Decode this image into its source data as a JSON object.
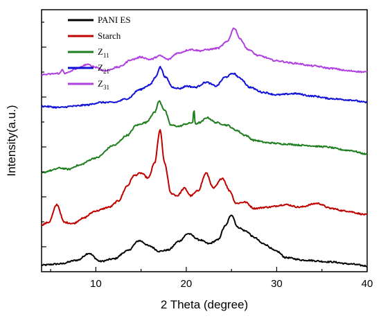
{
  "chart_data": {
    "type": "line",
    "title": "",
    "xlabel": "2 Theta (degree)",
    "ylabel": "Intensity(a.u.)",
    "xlim": [
      4,
      40
    ],
    "ylim": [
      0,
      1
    ],
    "x_ticks": [
      10,
      20,
      30,
      40
    ],
    "y_tick_labels_shown": false,
    "grid": false,
    "legend_position": "top-left",
    "series": [
      {
        "name": "PANI ES",
        "legend_base": "PANI ES",
        "legend_sub": "",
        "color": "#000000",
        "points": [
          [
            4,
            0.015
          ],
          [
            6,
            0.02
          ],
          [
            8,
            0.035
          ],
          [
            9.2,
            0.062
          ],
          [
            10.5,
            0.03
          ],
          [
            12,
            0.04
          ],
          [
            13.5,
            0.072
          ],
          [
            14.8,
            0.112
          ],
          [
            16,
            0.09
          ],
          [
            17,
            0.07
          ],
          [
            18,
            0.075
          ],
          [
            19.2,
            0.11
          ],
          [
            20.2,
            0.14
          ],
          [
            21.5,
            0.115
          ],
          [
            22.5,
            0.1
          ],
          [
            23.5,
            0.115
          ],
          [
            24.3,
            0.17
          ],
          [
            25,
            0.215
          ],
          [
            25.7,
            0.165
          ],
          [
            26.6,
            0.15
          ],
          [
            27.5,
            0.125
          ],
          [
            28.5,
            0.1
          ],
          [
            30,
            0.07
          ],
          [
            31,
            0.045
          ],
          [
            33,
            0.035
          ],
          [
            36,
            0.028
          ],
          [
            38,
            0.02
          ],
          [
            40,
            0.012
          ]
        ]
      },
      {
        "name": "Starch",
        "legend_base": "Starch",
        "legend_sub": "",
        "color": "#c00000",
        "points": [
          [
            4,
            0.175
          ],
          [
            4.8,
            0.185
          ],
          [
            5.7,
            0.255
          ],
          [
            6.5,
            0.185
          ],
          [
            7.5,
            0.18
          ],
          [
            8.5,
            0.2
          ],
          [
            10,
            0.23
          ],
          [
            11.5,
            0.245
          ],
          [
            12.5,
            0.27
          ],
          [
            13.5,
            0.33
          ],
          [
            14.2,
            0.37
          ],
          [
            15,
            0.38
          ],
          [
            15.8,
            0.36
          ],
          [
            16.5,
            0.42
          ],
          [
            17.1,
            0.55
          ],
          [
            17.6,
            0.42
          ],
          [
            18.3,
            0.3
          ],
          [
            19,
            0.29
          ],
          [
            19.8,
            0.32
          ],
          [
            20.5,
            0.29
          ],
          [
            21.3,
            0.31
          ],
          [
            22.2,
            0.38
          ],
          [
            23,
            0.32
          ],
          [
            24,
            0.36
          ],
          [
            24.8,
            0.31
          ],
          [
            25.5,
            0.26
          ],
          [
            26.5,
            0.265
          ],
          [
            27.5,
            0.24
          ],
          [
            29,
            0.245
          ],
          [
            31,
            0.255
          ],
          [
            32.5,
            0.245
          ],
          [
            34.5,
            0.26
          ],
          [
            36,
            0.24
          ],
          [
            37.5,
            0.23
          ],
          [
            40,
            0.215
          ]
        ]
      },
      {
        "name": "Z11",
        "legend_base": "Z",
        "legend_sub": "11",
        "color": "#1e7d1e",
        "points": [
          [
            4,
            0.38
          ],
          [
            5,
            0.39
          ],
          [
            6,
            0.4
          ],
          [
            7,
            0.395
          ],
          [
            8,
            0.41
          ],
          [
            10,
            0.44
          ],
          [
            12,
            0.49
          ],
          [
            13.5,
            0.53
          ],
          [
            14.5,
            0.57
          ],
          [
            15.5,
            0.58
          ],
          [
            16.5,
            0.62
          ],
          [
            17,
            0.665
          ],
          [
            17.6,
            0.63
          ],
          [
            18.3,
            0.57
          ],
          [
            19.2,
            0.565
          ],
          [
            20,
            0.575
          ],
          [
            20.7,
            0.58
          ],
          [
            20.85,
            0.63
          ],
          [
            21,
            0.575
          ],
          [
            21.5,
            0.58
          ],
          [
            22.3,
            0.6
          ],
          [
            23.3,
            0.58
          ],
          [
            24.5,
            0.57
          ],
          [
            25.5,
            0.55
          ],
          [
            26.5,
            0.53
          ],
          [
            27.5,
            0.51
          ],
          [
            29,
            0.5
          ],
          [
            31,
            0.495
          ],
          [
            33,
            0.49
          ],
          [
            35,
            0.485
          ],
          [
            38,
            0.47
          ],
          [
            40,
            0.455
          ]
        ]
      },
      {
        "name": "Z21",
        "legend_base": "Z",
        "legend_sub": "21",
        "color": "#1010d8",
        "points": [
          [
            4,
            0.645
          ],
          [
            6,
            0.64
          ],
          [
            7.5,
            0.645
          ],
          [
            9,
            0.65
          ],
          [
            10.5,
            0.66
          ],
          [
            12,
            0.66
          ],
          [
            13.5,
            0.675
          ],
          [
            14.8,
            0.71
          ],
          [
            16,
            0.73
          ],
          [
            16.6,
            0.76
          ],
          [
            17.1,
            0.8
          ],
          [
            17.7,
            0.76
          ],
          [
            18.5,
            0.72
          ],
          [
            19.3,
            0.715
          ],
          [
            20,
            0.725
          ],
          [
            21,
            0.72
          ],
          [
            22.2,
            0.74
          ],
          [
            23.3,
            0.725
          ],
          [
            24.3,
            0.76
          ],
          [
            25.2,
            0.775
          ],
          [
            26,
            0.755
          ],
          [
            27,
            0.72
          ],
          [
            28.5,
            0.7
          ],
          [
            30,
            0.69
          ],
          [
            32,
            0.695
          ],
          [
            34,
            0.685
          ],
          [
            36,
            0.675
          ],
          [
            38,
            0.67
          ],
          [
            40,
            0.66
          ]
        ]
      },
      {
        "name": "Z31",
        "legend_base": "Z",
        "legend_sub": "31",
        "color": "#b040e0",
        "points": [
          [
            4,
            0.77
          ],
          [
            6,
            0.775
          ],
          [
            6.3,
            0.79
          ],
          [
            6.6,
            0.775
          ],
          [
            8,
            0.795
          ],
          [
            9,
            0.81
          ],
          [
            10,
            0.8
          ],
          [
            11,
            0.785
          ],
          [
            12.5,
            0.8
          ],
          [
            14,
            0.83
          ],
          [
            15,
            0.84
          ],
          [
            16,
            0.83
          ],
          [
            17.1,
            0.845
          ],
          [
            18,
            0.83
          ],
          [
            19,
            0.855
          ],
          [
            20.5,
            0.87
          ],
          [
            21.5,
            0.865
          ],
          [
            22.5,
            0.87
          ],
          [
            23.5,
            0.875
          ],
          [
            24.5,
            0.9
          ],
          [
            25.3,
            0.955
          ],
          [
            26,
            0.91
          ],
          [
            26.8,
            0.87
          ],
          [
            28,
            0.845
          ],
          [
            30,
            0.825
          ],
          [
            32,
            0.815
          ],
          [
            34,
            0.805
          ],
          [
            36,
            0.795
          ],
          [
            38,
            0.785
          ],
          [
            40,
            0.78
          ]
        ]
      }
    ]
  }
}
